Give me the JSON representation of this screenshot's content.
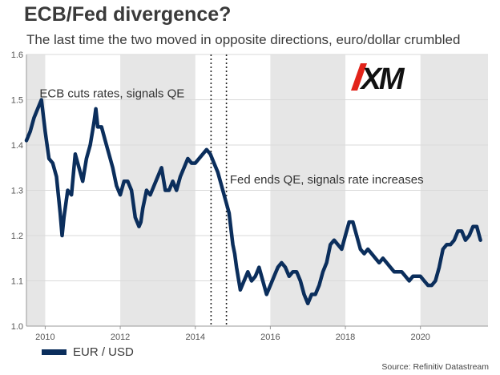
{
  "header": {
    "title": "ECB/Fed divergence?",
    "subtitle": "The last time the two moved in opposite directions, euro/dollar crumbled"
  },
  "logo": {
    "text": "XM",
    "colors": {
      "red": "#e2231a",
      "black": "#111111"
    }
  },
  "footer": {
    "source": "Source: Refinitiv Datastream"
  },
  "colors": {
    "line": "#0b2e5c",
    "band": "#e6e6e6",
    "grid": "#d9d9d9",
    "axis": "#999999"
  },
  "chart_data": {
    "type": "line",
    "title": "",
    "xlabel": "",
    "ylabel": "",
    "xlim": [
      2009.5,
      2021.8
    ],
    "ylim": [
      1.0,
      1.6
    ],
    "yticks": [
      1.0,
      1.1,
      1.2,
      1.3,
      1.4,
      1.5,
      1.6
    ],
    "ytick_labels": [
      "1.0",
      "1.1",
      "1.2",
      "1.3",
      "1.4",
      "1.5",
      "1.6"
    ],
    "xticks": [
      2010,
      2012,
      2014,
      2016,
      2018,
      2020
    ],
    "xtick_labels": [
      "2010",
      "2012",
      "2014",
      "2016",
      "2018",
      "2020"
    ],
    "grid": true,
    "shaded_bands": [
      [
        2009.5,
        2010.0
      ],
      [
        2012.0,
        2014.0
      ],
      [
        2016.0,
        2018.0
      ],
      [
        2020.0,
        2021.8
      ]
    ],
    "vertical_markers": [
      {
        "x": 2014.42,
        "label": "ECB cuts rates, signals QE",
        "label_year": 2009.85,
        "label_value": 1.505
      },
      {
        "x": 2014.83,
        "label": "Fed ends QE, signals rate increases",
        "label_year": 2014.92,
        "label_value": 1.315
      }
    ],
    "legend": {
      "position": "bottom-left",
      "entries": [
        "EUR / USD"
      ]
    },
    "series": [
      {
        "name": "EUR / USD",
        "x": [
          2009.5,
          2009.6,
          2009.7,
          2009.8,
          2009.9,
          2010.0,
          2010.1,
          2010.2,
          2010.3,
          2010.4,
          2010.45,
          2010.5,
          2010.6,
          2010.7,
          2010.8,
          2010.9,
          2011.0,
          2011.1,
          2011.2,
          2011.3,
          2011.35,
          2011.4,
          2011.5,
          2011.6,
          2011.7,
          2011.8,
          2011.9,
          2012.0,
          2012.1,
          2012.2,
          2012.3,
          2012.4,
          2012.5,
          2012.55,
          2012.6,
          2012.7,
          2012.8,
          2012.9,
          2013.0,
          2013.1,
          2013.2,
          2013.3,
          2013.4,
          2013.5,
          2013.6,
          2013.7,
          2013.8,
          2013.9,
          2014.0,
          2014.1,
          2014.2,
          2014.3,
          2014.4,
          2014.5,
          2014.6,
          2014.7,
          2014.8,
          2014.9,
          2015.0,
          2015.05,
          2015.1,
          2015.2,
          2015.3,
          2015.4,
          2015.5,
          2015.6,
          2015.7,
          2015.8,
          2015.9,
          2016.0,
          2016.1,
          2016.2,
          2016.3,
          2016.4,
          2016.5,
          2016.6,
          2016.7,
          2016.8,
          2016.9,
          2017.0,
          2017.1,
          2017.2,
          2017.3,
          2017.4,
          2017.5,
          2017.6,
          2017.7,
          2017.8,
          2017.9,
          2018.0,
          2018.1,
          2018.2,
          2018.3,
          2018.4,
          2018.5,
          2018.6,
          2018.7,
          2018.8,
          2018.9,
          2019.0,
          2019.1,
          2019.2,
          2019.3,
          2019.4,
          2019.5,
          2019.6,
          2019.7,
          2019.8,
          2019.9,
          2020.0,
          2020.1,
          2020.2,
          2020.3,
          2020.4,
          2020.5,
          2020.6,
          2020.7,
          2020.8,
          2020.9,
          2021.0,
          2021.1,
          2021.2,
          2021.3,
          2021.4,
          2021.5,
          2021.6
        ],
        "values": [
          1.41,
          1.43,
          1.46,
          1.48,
          1.5,
          1.43,
          1.37,
          1.36,
          1.33,
          1.25,
          1.2,
          1.24,
          1.3,
          1.29,
          1.38,
          1.35,
          1.32,
          1.37,
          1.4,
          1.45,
          1.48,
          1.44,
          1.44,
          1.41,
          1.38,
          1.35,
          1.31,
          1.29,
          1.32,
          1.32,
          1.3,
          1.24,
          1.22,
          1.23,
          1.26,
          1.3,
          1.29,
          1.31,
          1.33,
          1.35,
          1.3,
          1.3,
          1.32,
          1.3,
          1.33,
          1.35,
          1.37,
          1.36,
          1.36,
          1.37,
          1.38,
          1.39,
          1.38,
          1.36,
          1.34,
          1.31,
          1.28,
          1.25,
          1.18,
          1.16,
          1.13,
          1.08,
          1.1,
          1.12,
          1.1,
          1.11,
          1.13,
          1.1,
          1.07,
          1.09,
          1.11,
          1.13,
          1.14,
          1.13,
          1.11,
          1.12,
          1.12,
          1.1,
          1.07,
          1.05,
          1.07,
          1.07,
          1.09,
          1.12,
          1.14,
          1.18,
          1.19,
          1.18,
          1.17,
          1.2,
          1.23,
          1.23,
          1.2,
          1.17,
          1.16,
          1.17,
          1.16,
          1.15,
          1.14,
          1.15,
          1.14,
          1.13,
          1.12,
          1.12,
          1.12,
          1.11,
          1.1,
          1.11,
          1.11,
          1.11,
          1.1,
          1.09,
          1.09,
          1.1,
          1.13,
          1.17,
          1.18,
          1.18,
          1.19,
          1.21,
          1.21,
          1.19,
          1.2,
          1.22,
          1.22,
          1.19
        ]
      }
    ]
  }
}
